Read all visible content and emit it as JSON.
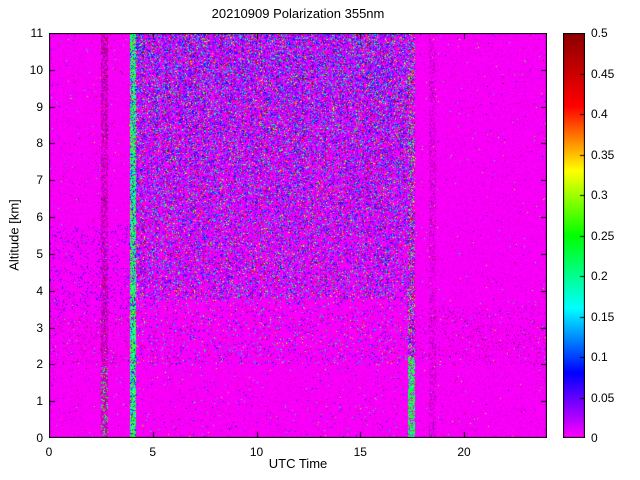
{
  "chart_data": {
    "type": "heatmap",
    "title": "20210909 Polarization 355nm",
    "xlabel": "UTC Time",
    "ylabel": "Altitude [km]",
    "x_range": [
      0,
      24
    ],
    "y_range": [
      0,
      11
    ],
    "x_ticks": [
      0,
      5,
      10,
      15,
      20
    ],
    "x_tick_labels": [
      "0",
      "5",
      "10",
      "15",
      "20"
    ],
    "y_ticks": [
      0,
      1,
      2,
      3,
      4,
      5,
      6,
      7,
      8,
      9,
      10,
      11
    ],
    "y_tick_labels": [
      "0",
      "1",
      "2",
      "3",
      "4",
      "5",
      "6",
      "7",
      "8",
      "9",
      "10",
      "11"
    ],
    "colorbar": {
      "min": 0,
      "max": 0.5,
      "ticks": [
        0,
        0.05,
        0.1,
        0.15,
        0.2,
        0.25,
        0.3,
        0.35,
        0.4,
        0.45,
        0.5
      ],
      "tick_labels": [
        "0",
        "0.05",
        "0.1",
        "0.15",
        "0.2",
        "0.25",
        "0.3",
        "0.35",
        "0.4",
        "0.45",
        "0.5"
      ]
    },
    "colormap_stops": [
      [
        0.0,
        [
          255,
          0,
          255
        ]
      ],
      [
        0.08,
        [
          0,
          0,
          255
        ]
      ],
      [
        0.16,
        [
          0,
          255,
          255
        ]
      ],
      [
        0.25,
        [
          0,
          255,
          0
        ]
      ],
      [
        0.33,
        [
          255,
          255,
          0
        ]
      ],
      [
        0.41,
        [
          255,
          0,
          0
        ]
      ],
      [
        0.5,
        [
          140,
          0,
          0
        ]
      ]
    ],
    "background_value": 0,
    "seed": 42,
    "regions": {
      "central_noise": {
        "t": [
          4.18,
          17.28
        ],
        "alt_dense": 3.8,
        "density_base": 0.32,
        "density_top": 0.55,
        "alt_sparse": 2.0,
        "sparse_density": 0.1
      },
      "stripe_left": {
        "t": [
          3.86,
          4.18
        ],
        "density": 0.72,
        "value_range": [
          0.15,
          0.3
        ]
      },
      "stripe_right": {
        "t": [
          17.28,
          17.6
        ],
        "bottom_alt": 2.2,
        "bottom_density": 0.75,
        "upper_density": 0.5
      },
      "dark_column_left": {
        "t": [
          2.5,
          2.82
        ],
        "darken_prob": 0.5,
        "green_alt": 2.0,
        "green_prob": 0.2
      },
      "dark_column_right": {
        "t": [
          18.3,
          18.65
        ],
        "darken_prob": 0.3
      },
      "bottom_band": {
        "alt": [
          2.0,
          3.6
        ],
        "speck_prob": 0.06,
        "color_prob": 0.012
      },
      "left_patch": {
        "t": [
          0,
          3.86
        ],
        "alt": [
          3.3,
          5.8
        ],
        "prob": 0.06
      }
    }
  }
}
